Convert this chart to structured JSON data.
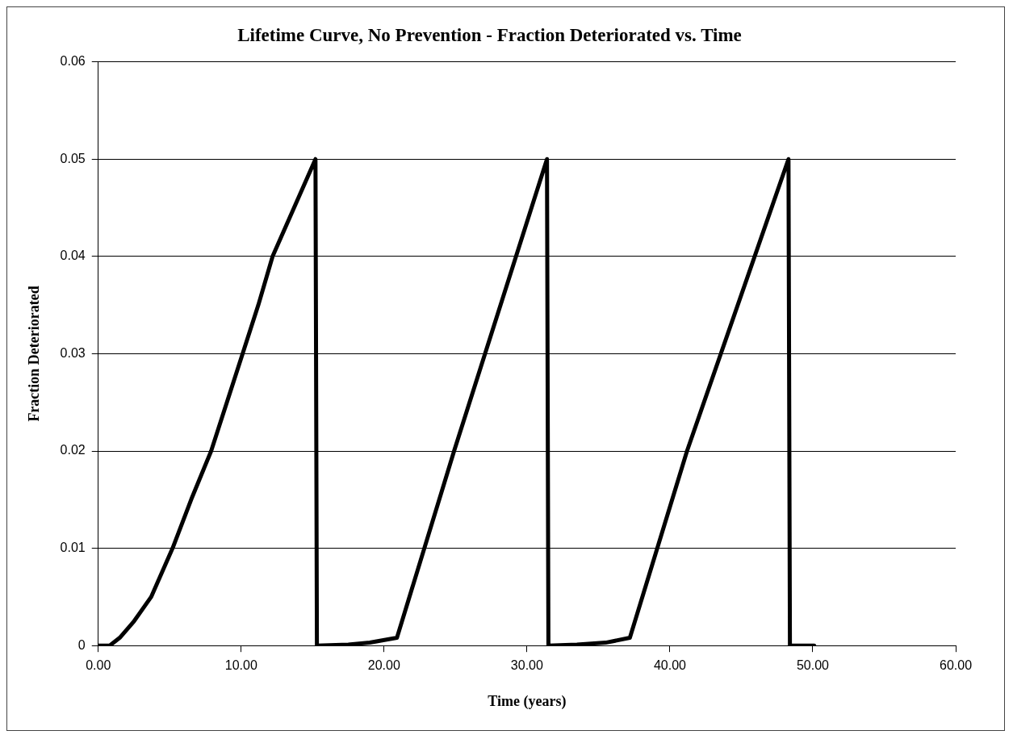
{
  "chart_data": {
    "type": "line",
    "title": "Lifetime Curve, No Prevention - Fraction Deteriorated vs. Time",
    "xlabel": "Time (years)",
    "ylabel": "Fraction Deteriorated",
    "x": [
      0,
      0.8,
      1.5,
      2.5,
      3.7,
      5.2,
      6.5,
      7.9,
      9.0,
      10.1,
      11.2,
      12.2,
      13.7,
      15.2,
      15.3,
      17.5,
      19.0,
      20.9,
      24.9,
      31.4,
      31.5,
      33.5,
      35.5,
      37.2,
      41.2,
      48.3,
      48.4,
      50.1
    ],
    "series": [
      {
        "color": "#000000",
        "values": [
          0,
          0,
          0.0008,
          0.0025,
          0.005,
          0.01,
          0.015,
          0.02,
          0.025,
          0.03,
          0.035,
          0.04,
          0.045,
          0.05,
          0,
          0.0001,
          0.0003,
          0.0008,
          0.02,
          0.05,
          0,
          0.0001,
          0.0003,
          0.0008,
          0.02,
          0.05,
          0,
          0
        ]
      }
    ],
    "xlim": [
      0,
      60
    ],
    "xticks": [
      {
        "value": 0,
        "label": "0.00"
      },
      {
        "value": 10,
        "label": "10.00"
      },
      {
        "value": 20,
        "label": "20.00"
      },
      {
        "value": 30,
        "label": "30.00"
      },
      {
        "value": 40,
        "label": "40.00"
      },
      {
        "value": 50,
        "label": "50.00"
      },
      {
        "value": 60,
        "label": "60.00"
      }
    ],
    "ylim": [
      0,
      0.06
    ],
    "yticks": [
      0,
      0.01,
      0.02,
      0.03,
      0.04,
      0.05,
      0.06
    ],
    "grid": "y",
    "legend": false,
    "marker": "none",
    "line_style": "solid"
  }
}
